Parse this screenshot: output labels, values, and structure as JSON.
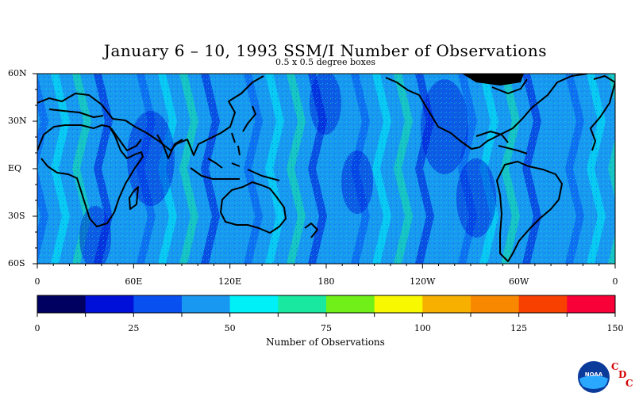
{
  "title": "January 6 – 10, 1993 SSM/I Number of Observations",
  "subtitle": "0.5 x 0.5 degree boxes",
  "lat_labels": [
    "60N",
    "30N",
    "EQ",
    "30S",
    "60S"
  ],
  "lon_labels": [
    "0",
    "60E",
    "120E",
    "180",
    "120W",
    "60W",
    "0"
  ],
  "colorbar": {
    "title": "Number of Observations",
    "tick_labels": [
      "0",
      "25",
      "50",
      "75",
      "100",
      "125",
      "150"
    ],
    "colors": [
      "#000060",
      "#0010d8",
      "#0850f0",
      "#1898f0",
      "#00f0f8",
      "#18e8a0",
      "#70f018",
      "#f8f800",
      "#f8b000",
      "#f88800",
      "#f84000",
      "#f80038"
    ]
  },
  "logo": {
    "name": "NOAA",
    "letters": [
      "C",
      "D",
      "C"
    ]
  },
  "chart_data": {
    "type": "heatmap",
    "title": "January 6 – 10, 1993 SSM/I Number of Observations",
    "subtitle": "0.5 x 0.5 degree boxes",
    "lat_range": [
      -60,
      60
    ],
    "lon_range": [
      0,
      360
    ],
    "color_range": [
      0,
      150
    ],
    "colorbar_label": "Number of Observations"
  }
}
